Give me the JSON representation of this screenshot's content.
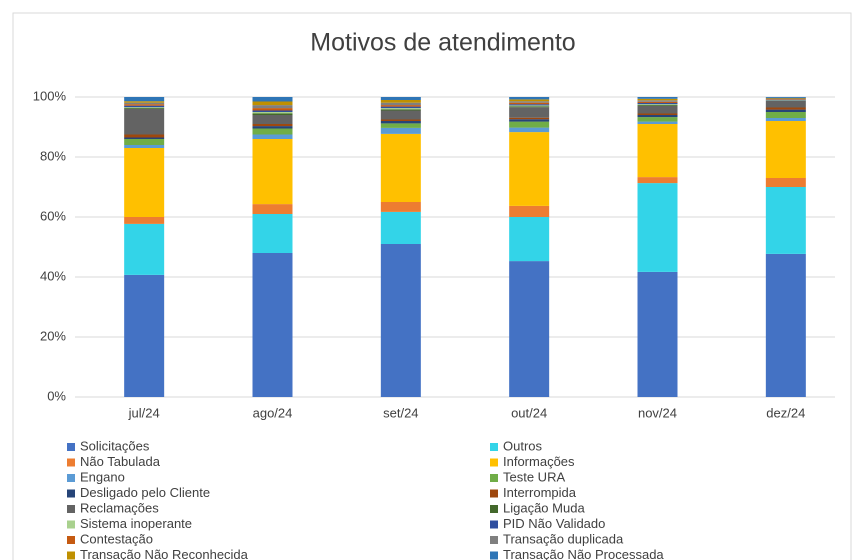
{
  "chart_data": {
    "type": "stacked_bar",
    "title": "Motivos de atendimento",
    "categories": [
      "jul/24",
      "ago/24",
      "set/24",
      "out/24",
      "nov/24",
      "dez/24"
    ],
    "ylim": [
      0,
      100
    ],
    "yticks": [
      {
        "value": 0,
        "label": "0%"
      },
      {
        "value": 20,
        "label": "20%"
      },
      {
        "value": 40,
        "label": "40%"
      },
      {
        "value": 60,
        "label": "60%"
      },
      {
        "value": 80,
        "label": "80%"
      },
      {
        "value": 100,
        "label": "100%"
      }
    ],
    "grid": true,
    "legend": "bottom",
    "series": [
      {
        "name": "Solicitações",
        "color": "#4472c4",
        "values": [
          40.7,
          48,
          51,
          45.3,
          41.7,
          47.7
        ]
      },
      {
        "name": "Outros",
        "color": "#33d4e8",
        "values": [
          17,
          13,
          10.7,
          14.7,
          29.6,
          22.3
        ]
      },
      {
        "name": "Não Tabulada",
        "color": "#ed7d31",
        "values": [
          2.3,
          3.3,
          3.3,
          3.7,
          2,
          3
        ]
      },
      {
        "name": "Informações",
        "color": "#ffc000",
        "values": [
          23,
          21.7,
          22.7,
          24.6,
          17.7,
          19
        ]
      },
      {
        "name": "Engano",
        "color": "#5b9bd5",
        "values": [
          1,
          1.5,
          2,
          1.5,
          0.8,
          1
        ]
      },
      {
        "name": "Teste URA",
        "color": "#70ad47",
        "values": [
          2,
          2,
          1.5,
          2,
          1.5,
          2
        ]
      },
      {
        "name": "Desligado pelo Cliente",
        "color": "#264478",
        "values": [
          0.5,
          0.8,
          0.8,
          0.8,
          0.7,
          0.8
        ]
      },
      {
        "name": "Interrompida",
        "color": "#9e480e",
        "values": [
          1,
          0.7,
          0.5,
          0.5,
          0.5,
          0.7
        ]
      },
      {
        "name": "Reclamações",
        "color": "#636363",
        "values": [
          8.5,
          3,
          3,
          3.5,
          2.5,
          2.2
        ]
      },
      {
        "name": "Ligação Muda",
        "color": "#43682b",
        "values": [
          0.3,
          0.5,
          0.4,
          0.3,
          0.3,
          0.1
        ]
      },
      {
        "name": "Sistema inoperante",
        "color": "#a9d18e",
        "values": [
          0.3,
          0.5,
          0.4,
          0.3,
          0.3,
          0.1
        ]
      },
      {
        "name": "PID Não Validado",
        "color": "#2f4fa0",
        "values": [
          0.5,
          0.5,
          0.5,
          0.4,
          0.4,
          0.2
        ]
      },
      {
        "name": "Contestação",
        "color": "#c55a11",
        "values": [
          0.5,
          0.8,
          0.5,
          0.5,
          0.4,
          0.2
        ]
      },
      {
        "name": "Transação duplicada",
        "color": "#7f7f7f",
        "values": [
          0.5,
          1,
          0.8,
          0.5,
          0.5,
          0.2
        ]
      },
      {
        "name": "Transação Não Reconhecida",
        "color": "#bf9000",
        "values": [
          0.5,
          1.2,
          0.9,
          0.6,
          0.5,
          0.2
        ]
      },
      {
        "name": "Transação Não Processada",
        "color": "#2e75b6",
        "values": [
          1.4,
          1.5,
          1,
          0.8,
          0.6,
          0.3
        ]
      }
    ]
  }
}
